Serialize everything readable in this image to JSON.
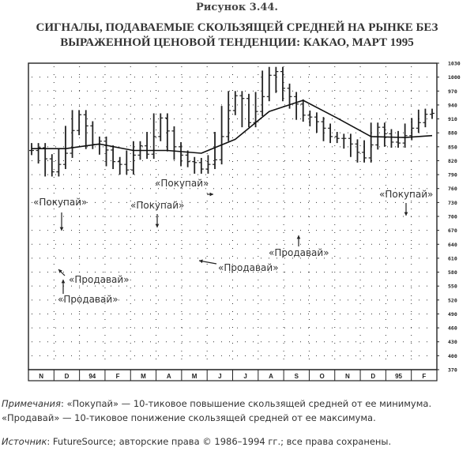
{
  "figure": {
    "label": "Рисунок 3.44.",
    "title_line1": "СИГНАЛЫ, ПОДАВАЕМЫЕ СКОЛЬЗЯЩЕЙ СРЕДНЕЙ НА РЫНКЕ БЕЗ",
    "title_line2": "ВЫРАЖЕННОЙ ЦЕНОВОЙ ТЕНДЕНЦИИ: КАКАО, МАРТ 1995"
  },
  "notes": {
    "label": "Примечания",
    "line1": ": «Покупай» — 10-тиковое повышение скользящей средней от ее минимума.",
    "line2": "«Продавай» — 10-тиковое понижение скользящей средней от ее максимума."
  },
  "source": {
    "label": "Источник",
    "text": ": FutureSource; авторские права © 1986–1994 гг.; все права сохранены."
  },
  "chart_data": {
    "type": "line",
    "title": "СИГНАЛЫ, ПОДАВАЕМЫЕ СКОЛЬЗЯЩЕЙ СРЕДНЕЙ НА РЫНКЕ БЕЗ ВЫРАЖЕННОЙ ЦЕНОВОЙ ТЕНДЕНЦИИ: КАКАО, МАРТ 1995",
    "xlabel": "",
    "ylabel": "",
    "x_tick_labels": [
      "N",
      "D",
      "94",
      "F",
      "M",
      "A",
      "M",
      "J",
      "J",
      "A",
      "S",
      "O",
      "N",
      "D",
      "95",
      "F"
    ],
    "y_tick_labels": [
      "1030",
      "1000",
      "970",
      "940",
      "910",
      "880",
      "850",
      "820",
      "790",
      "760",
      "730",
      "700",
      "670",
      "640",
      "610",
      "580",
      "550",
      "520",
      "490",
      "460",
      "430",
      "400",
      "370"
    ],
    "ylim": [
      370,
      1030
    ],
    "grid": true,
    "series": [
      {
        "price_bars": [
          [
            0.0,
            842
          ],
          [
            1.0,
            848
          ],
          [
            2.0,
            824
          ],
          [
            3.0,
            796
          ],
          [
            4.0,
            812
          ],
          [
            5.0,
            836
          ],
          [
            6.0,
            885
          ],
          [
            7.0,
            919
          ],
          [
            8.0,
            895
          ],
          [
            9.0,
            855
          ],
          [
            10.0,
            862
          ],
          [
            11.0,
            843
          ],
          [
            12.0,
            818
          ],
          [
            13.0,
            812
          ],
          [
            14.0,
            800
          ],
          [
            15.0,
            832
          ],
          [
            16.0,
            852
          ],
          [
            17.0,
            834
          ],
          [
            18.0,
            872
          ],
          [
            19.0,
            912
          ],
          [
            20.0,
            884
          ],
          [
            21.0,
            850
          ],
          [
            22.0,
            832
          ],
          [
            23.0,
            818
          ],
          [
            24.0,
            816
          ],
          [
            25.0,
            802
          ],
          [
            26.0,
            812
          ],
          [
            27.0,
            822
          ],
          [
            28.0,
            872
          ],
          [
            29.0,
            928
          ],
          [
            30.0,
            960
          ],
          [
            31.0,
            954
          ],
          [
            32.0,
            902
          ],
          [
            33.0,
            926
          ],
          [
            34.0,
            958
          ],
          [
            35.0,
            1004
          ],
          [
            36.0,
            1012
          ],
          [
            37.0,
            976
          ],
          [
            38.0,
            958
          ],
          [
            39.0,
            942
          ],
          [
            40.0,
            918
          ],
          [
            41.0,
            914
          ],
          [
            42.0,
            904
          ],
          [
            43.0,
            890
          ],
          [
            44.0,
            872
          ],
          [
            45.0,
            868
          ],
          [
            46.0,
            868
          ],
          [
            47.0,
            856
          ],
          [
            48.0,
            838
          ],
          [
            49.0,
            826
          ],
          [
            50.0,
            854
          ],
          [
            51.0,
            892
          ],
          [
            52.0,
            878
          ],
          [
            53.0,
            860
          ],
          [
            54.0,
            858
          ],
          [
            55.0,
            874
          ],
          [
            56.0,
            890
          ],
          [
            57.0,
            902
          ],
          [
            58.0,
            920
          ],
          [
            59.0,
            922
          ]
        ]
      },
      {
        "moving_average": [
          [
            0.0,
            846
          ],
          [
            5.0,
            846
          ],
          [
            10.0,
            856
          ],
          [
            15.0,
            842
          ],
          [
            20.0,
            842
          ],
          [
            25.0,
            836
          ],
          [
            30.0,
            866
          ],
          [
            35.0,
            926
          ],
          [
            40.0,
            950
          ],
          [
            45.0,
            912
          ],
          [
            50.0,
            872
          ],
          [
            55.0,
            870
          ],
          [
            59.0,
            874
          ]
        ]
      }
    ],
    "annotations": [
      {
        "text": "«Покупай»",
        "x": 12,
        "y": 918
      },
      {
        "text": "«Продавай»",
        "x": 13,
        "y": 795
      },
      {
        "text": "«Продавай»",
        "x": 12,
        "y": 770
      },
      {
        "text": "«Покупай»",
        "x": 19,
        "y": 918
      },
      {
        "text": "«Покупай»",
        "x": 29,
        "y": 968
      },
      {
        "text": "«Продавай»",
        "x": 35,
        "y": 810
      },
      {
        "text": "«Продавай»",
        "x": 43,
        "y": 840
      },
      {
        "text": "«Покупай»",
        "x": 57,
        "y": 930
      }
    ]
  }
}
